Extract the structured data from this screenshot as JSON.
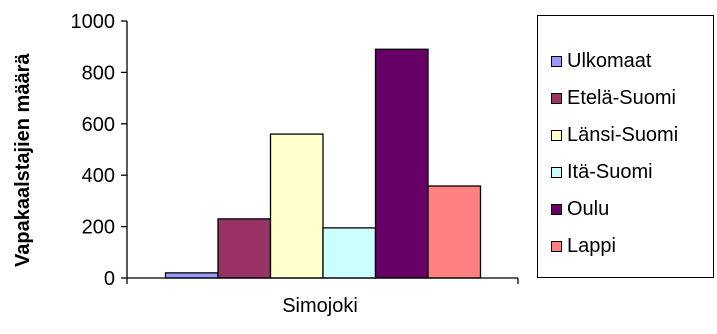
{
  "chart_data": {
    "type": "bar",
    "title": "",
    "xlabel": "",
    "ylabel": "Vapakaalstajien määrä",
    "categories": [
      "Simojoki"
    ],
    "ylim": [
      0,
      1000
    ],
    "yticks": [
      0,
      200,
      400,
      600,
      800,
      1000
    ],
    "grid": false,
    "legend_position": "right",
    "series": [
      {
        "name": "Ulkomaat",
        "values": [
          20
        ],
        "color": "#9999FF"
      },
      {
        "name": "Etelä-Suomi",
        "values": [
          230
        ],
        "color": "#993366"
      },
      {
        "name": "Länsi-Suomi",
        "values": [
          560
        ],
        "color": "#FFFFCC"
      },
      {
        "name": "Itä-Suomi",
        "values": [
          195
        ],
        "color": "#CCFFFF"
      },
      {
        "name": "Oulu",
        "values": [
          890
        ],
        "color": "#660066"
      },
      {
        "name": "Lappi",
        "values": [
          358
        ],
        "color": "#FF8080"
      }
    ]
  }
}
